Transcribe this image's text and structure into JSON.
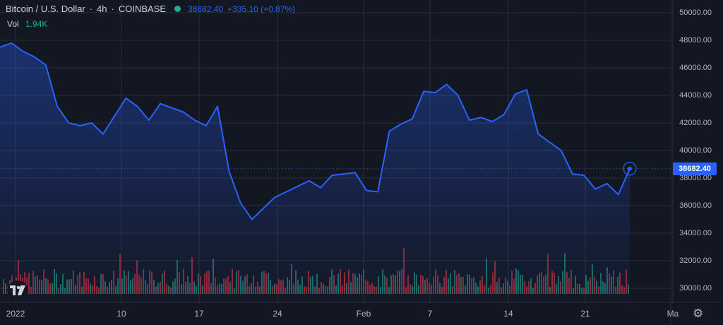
{
  "header": {
    "symbol": "Bitcoin / U.S. Dollar",
    "interval": "4h",
    "exchange": "COINBASE",
    "price": "38682.40",
    "change": "+335.10 (+0.87%)"
  },
  "volume": {
    "label": "Vol",
    "value": "1.94K"
  },
  "last_price_label": "38682.40",
  "colors": {
    "background": "#131722",
    "line": "#2962ff",
    "up": "#22ab94",
    "down": "#f23645",
    "grid": "#2a2e39"
  },
  "icons": {
    "logo": "tradingview-logo-icon",
    "settings": "gear-icon",
    "status": "market-status-dot-icon"
  },
  "chart_data": {
    "type": "area",
    "title": "Bitcoin / U.S. Dollar",
    "ylim": [
      29000,
      51000
    ],
    "y_ticks": [
      "50000.00",
      "48000.00",
      "46000.00",
      "44000.00",
      "42000.00",
      "40000.00",
      "38000.00",
      "36000.00",
      "34000.00",
      "32000.00",
      "30000.00"
    ],
    "x_tick_labels": [
      "2022",
      "10",
      "17",
      "24",
      "Feb",
      "7",
      "14",
      "21",
      "Ma"
    ],
    "last_value": 38682.4,
    "grid": true,
    "series": [
      {
        "x": [
          "Jan 1",
          "Jan 2",
          "Jan 3",
          "Jan 4",
          "Jan 5",
          "Jan 6",
          "Jan 7",
          "Jan 8",
          "Jan 9",
          "Jan 10",
          "Jan 11",
          "Jan 12",
          "Jan 13",
          "Jan 14",
          "Jan 15",
          "Jan 16",
          "Jan 17",
          "Jan 18",
          "Jan 19",
          "Jan 20",
          "Jan 21",
          "Jan 22",
          "Jan 23",
          "Jan 24",
          "Jan 25",
          "Jan 26",
          "Jan 27",
          "Jan 28",
          "Jan 29",
          "Jan 30",
          "Jan 31",
          "Feb 1",
          "Feb 2",
          "Feb 3",
          "Feb 4",
          "Feb 5",
          "Feb 6",
          "Feb 7",
          "Feb 8",
          "Feb 9",
          "Feb 10",
          "Feb 11",
          "Feb 12",
          "Feb 13",
          "Feb 14",
          "Feb 15",
          "Feb 16",
          "Feb 17",
          "Feb 18",
          "Feb 19",
          "Feb 20",
          "Feb 21",
          "Feb 22",
          "Feb 23",
          "Feb 24",
          "Feb 25"
        ],
        "values": [
          47500,
          47800,
          47200,
          46800,
          46200,
          43200,
          42000,
          41800,
          42000,
          41200,
          42500,
          43800,
          43200,
          42200,
          43400,
          43100,
          42800,
          42200,
          41800,
          43200,
          38500,
          36200,
          35000,
          35800,
          36600,
          37000,
          37400,
          37800,
          37300,
          38200,
          38300,
          38400,
          37100,
          37000,
          41400,
          41900,
          42300,
          44300,
          44200,
          44800,
          44000,
          42200,
          42400,
          42100,
          42600,
          44100,
          44400,
          41200,
          40600,
          40000,
          38300,
          38200,
          37200,
          37600,
          36800,
          38682.4
        ]
      }
    ],
    "volume_bars": "mixed red/green volume histogram along bottom"
  }
}
